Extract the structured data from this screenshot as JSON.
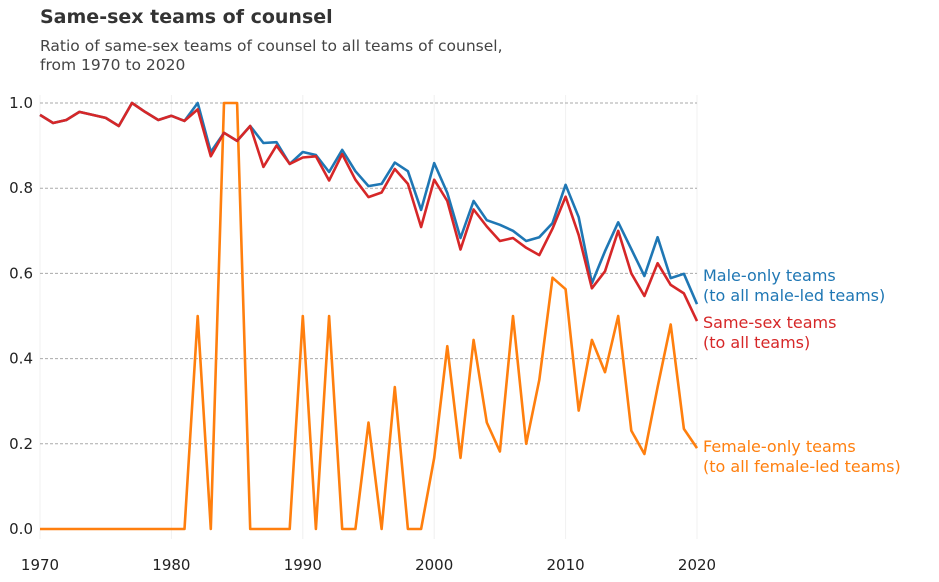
{
  "chart_data": {
    "type": "line",
    "title": "Same-sex teams of counsel",
    "subtitle_lines": [
      "Ratio of same-sex teams of counsel to all teams of counsel,",
      "from 1970 to 2020"
    ],
    "xlabel": "",
    "ylabel": "",
    "xlim": [
      1970,
      2020
    ],
    "ylim": [
      0,
      1.0
    ],
    "x_ticks": [
      "1970",
      "1980",
      "1990",
      "2000",
      "2010",
      "2020"
    ],
    "y_ticks": [
      "0.0",
      "0.2",
      "0.4",
      "0.6",
      "0.8",
      "1.0"
    ],
    "grid": "horizontal dashed",
    "x": [
      1970,
      1971,
      1972,
      1973,
      1974,
      1975,
      1976,
      1977,
      1978,
      1979,
      1980,
      1981,
      1982,
      1983,
      1984,
      1985,
      1986,
      1987,
      1988,
      1989,
      1990,
      1991,
      1992,
      1993,
      1994,
      1995,
      1996,
      1997,
      1998,
      1999,
      2000,
      2001,
      2002,
      2003,
      2004,
      2005,
      2006,
      2007,
      2008,
      2009,
      2010,
      2011,
      2012,
      2013,
      2014,
      2015,
      2016,
      2017,
      2018,
      2019,
      2020
    ],
    "series": [
      {
        "name": "Male-only teams",
        "label_lines": [
          "Male-only teams",
          "(to all male-led teams)"
        ],
        "color": "#1f77b4",
        "values": [
          0.972,
          0.953,
          0.96,
          0.979,
          0.972,
          0.965,
          0.946,
          1.0,
          0.979,
          0.96,
          0.97,
          0.958,
          1.0,
          0.885,
          0.93,
          0.911,
          0.946,
          0.906,
          0.908,
          0.857,
          0.885,
          0.878,
          0.838,
          0.89,
          0.84,
          0.805,
          0.81,
          0.86,
          0.84,
          0.749,
          0.859,
          0.789,
          0.683,
          0.77,
          0.725,
          0.714,
          0.7,
          0.676,
          0.685,
          0.718,
          0.808,
          0.732,
          0.577,
          0.652,
          0.72,
          0.657,
          0.594,
          0.685,
          0.589,
          0.599,
          0.528
        ]
      },
      {
        "name": "Same-sex teams",
        "label_lines": [
          "Same-sex teams",
          "(to all teams)"
        ],
        "color": "#d62728",
        "values": [
          0.972,
          0.953,
          0.96,
          0.979,
          0.972,
          0.965,
          0.946,
          1.0,
          0.979,
          0.96,
          0.97,
          0.958,
          0.985,
          0.875,
          0.93,
          0.911,
          0.946,
          0.85,
          0.9,
          0.857,
          0.872,
          0.875,
          0.818,
          0.88,
          0.82,
          0.779,
          0.79,
          0.845,
          0.81,
          0.709,
          0.82,
          0.77,
          0.656,
          0.75,
          0.71,
          0.676,
          0.683,
          0.66,
          0.643,
          0.705,
          0.78,
          0.69,
          0.565,
          0.605,
          0.7,
          0.6,
          0.547,
          0.624,
          0.573,
          0.553,
          0.488
        ]
      },
      {
        "name": "Female-only teams",
        "label_lines": [
          "Female-only teams",
          "(to all female-led teams)"
        ],
        "color": "#ff7f0e",
        "values": [
          0,
          0,
          0,
          0,
          0,
          0,
          0,
          0,
          0,
          0,
          0,
          0,
          0.5,
          0,
          1,
          1,
          0,
          0,
          0,
          0,
          0.5,
          0,
          0.5,
          0,
          0,
          0.25,
          0,
          0.333,
          0,
          0,
          0.167,
          0.429,
          0.167,
          0.444,
          0.25,
          0.182,
          0.5,
          0.2,
          0.35,
          0.59,
          0.563,
          0.278,
          0.444,
          0.368,
          0.5,
          0.231,
          0.176,
          0.333,
          0.48,
          0.235,
          0.19
        ]
      }
    ]
  }
}
